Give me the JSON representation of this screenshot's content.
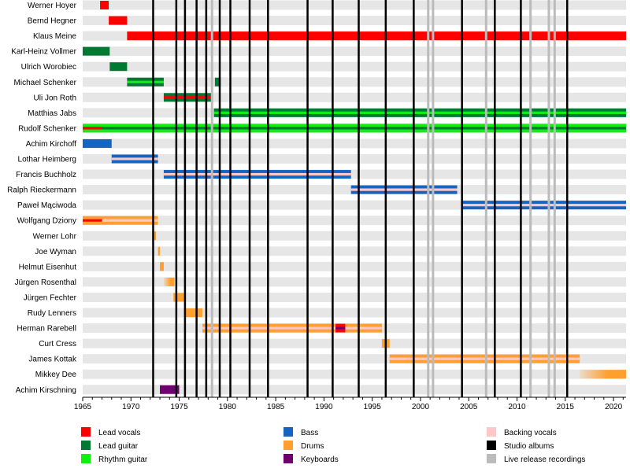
{
  "chart_data": {
    "type": "timeline",
    "x_range": [
      1965,
      2021.3
    ],
    "x_ticks": [
      1965,
      1970,
      1975,
      1980,
      1985,
      1990,
      1995,
      2000,
      2005,
      2010,
      2015,
      2020
    ],
    "roles": {
      "lead_vocals": {
        "label": "Lead vocals",
        "color": "#ff0000"
      },
      "lead_guitar": {
        "label": "Lead guitar",
        "color": "#007a33"
      },
      "rhythm_guitar": {
        "label": "Rhythm guitar",
        "color": "#11ee11"
      },
      "bass": {
        "label": "Bass",
        "color": "#1565c0"
      },
      "drums": {
        "label": "Drums",
        "color": "#ff9f2e"
      },
      "keyboards": {
        "label": "Keyboards",
        "color": "#700070"
      },
      "backing_vocals": {
        "label": "Backing vocals",
        "color": "#ffc8c8"
      },
      "studio_albums": {
        "label": "Studio albums",
        "color": "#000000"
      },
      "live_releases": {
        "label": "Live release recordings",
        "color": "#bbbbbb"
      }
    },
    "legend": [
      [
        "lead_vocals",
        "bass",
        "backing_vocals"
      ],
      [
        "lead_guitar",
        "drums",
        "studio_albums"
      ],
      [
        "rhythm_guitar",
        "keyboards",
        "live_releases"
      ]
    ],
    "members": [
      {
        "name": "Werner Hoyer",
        "periods": [
          {
            "start": 1966.8,
            "end": 1967.7,
            "role": "lead_vocals"
          }
        ]
      },
      {
        "name": "Bernd Hegner",
        "periods": [
          {
            "start": 1967.7,
            "end": 1969.6,
            "role": "lead_vocals"
          }
        ]
      },
      {
        "name": "Klaus Meine",
        "periods": [
          {
            "start": 1969.6,
            "end": 2021.3,
            "role": "lead_vocals"
          }
        ]
      },
      {
        "name": "Karl-Heinz Vollmer",
        "periods": [
          {
            "start": 1965.0,
            "end": 1967.8,
            "role": "lead_guitar"
          }
        ]
      },
      {
        "name": "Ulrich Worobiec",
        "periods": [
          {
            "start": 1967.8,
            "end": 1969.6,
            "role": "lead_guitar"
          }
        ]
      },
      {
        "name": "Michael Schenker",
        "periods": [
          {
            "start": 1969.6,
            "end": 1973.4,
            "role": "lead_guitar",
            "secondary": "rhythm_guitar"
          },
          {
            "start": 1978.7,
            "end": 1979.3,
            "role": "lead_guitar"
          }
        ]
      },
      {
        "name": "Uli Jon Roth",
        "periods": [
          {
            "start": 1973.4,
            "end": 1978.3,
            "role": "lead_guitar",
            "overlay": "lead_vocals"
          }
        ]
      },
      {
        "name": "Matthias Jabs",
        "periods": [
          {
            "start": 1978.6,
            "end": 2021.3,
            "role": "lead_guitar",
            "secondary": "rhythm_guitar"
          }
        ]
      },
      {
        "name": "Rudolf Schenker",
        "periods": [
          {
            "start": 1965.0,
            "end": 2021.3,
            "role": "rhythm_guitar",
            "secondary": "lead_guitar",
            "overlay": "lead_vocals",
            "overlay_end": 1967.0
          }
        ]
      },
      {
        "name": "Achim Kirchoff",
        "periods": [
          {
            "start": 1965.0,
            "end": 1968.0,
            "role": "bass"
          }
        ]
      },
      {
        "name": "Lothar Heimberg",
        "periods": [
          {
            "start": 1968.0,
            "end": 1972.8,
            "role": "bass",
            "secondary": "backing_vocals"
          }
        ]
      },
      {
        "name": "Francis Buchholz",
        "periods": [
          {
            "start": 1973.4,
            "end": 1992.8,
            "role": "bass",
            "secondary": "backing_vocals"
          }
        ]
      },
      {
        "name": "Ralph Rieckermann",
        "periods": [
          {
            "start": 1992.8,
            "end": 2003.8,
            "role": "bass",
            "secondary": "backing_vocals"
          }
        ]
      },
      {
        "name": "Paweł Mąciwoda",
        "periods": [
          {
            "start": 2004.3,
            "end": 2021.3,
            "role": "bass",
            "secondary": "backing_vocals"
          }
        ]
      },
      {
        "name": "Wolfgang Dziony",
        "periods": [
          {
            "start": 1965.0,
            "end": 1972.8,
            "role": "drums",
            "secondary": "backing_vocals",
            "overlay": "lead_vocals",
            "overlay_end": 1967.0
          }
        ]
      },
      {
        "name": "Werner Lohr",
        "periods": [
          {
            "start": 1972.3,
            "end": 1972.6,
            "role": "drums"
          }
        ]
      },
      {
        "name": "Joe Wyman",
        "periods": [
          {
            "start": 1972.8,
            "end": 1973.0,
            "role": "drums"
          }
        ]
      },
      {
        "name": "Helmut Eisenhut",
        "periods": [
          {
            "start": 1973.0,
            "end": 1973.4,
            "role": "drums"
          }
        ]
      },
      {
        "name": "Jürgen Rosenthal",
        "periods": [
          {
            "start": 1973.4,
            "end": 1974.5,
            "role": "drums",
            "fade_in": true
          }
        ]
      },
      {
        "name": "Jürgen Fechter",
        "periods": [
          {
            "start": 1974.4,
            "end": 1975.5,
            "role": "drums"
          }
        ]
      },
      {
        "name": "Rudy Lenners",
        "periods": [
          {
            "start": 1975.5,
            "end": 1977.4,
            "role": "drums"
          }
        ]
      },
      {
        "name": "Herman Rarebell",
        "periods": [
          {
            "start": 1977.4,
            "end": 1996.0,
            "role": "drums",
            "secondary": "backing_vocals",
            "marker_start": 1991.2,
            "marker_end": 1992.2
          }
        ]
      },
      {
        "name": "Curt Cress",
        "periods": [
          {
            "start": 1996.0,
            "end": 1996.8,
            "role": "drums"
          }
        ]
      },
      {
        "name": "James Kottak",
        "periods": [
          {
            "start": 1996.8,
            "end": 2016.5,
            "role": "drums",
            "secondary": "backing_vocals"
          }
        ]
      },
      {
        "name": "Mikkey Dee",
        "periods": [
          {
            "start": 2016.5,
            "end": 2021.3,
            "role": "drums",
            "fade_in": true
          }
        ]
      },
      {
        "name": "Achim Kirschning",
        "periods": [
          {
            "start": 1973.0,
            "end": 1975.0,
            "role": "keyboards"
          }
        ]
      }
    ],
    "studio_albums": [
      1972.3,
      1974.7,
      1975.6,
      1976.8,
      1977.8,
      1979.2,
      1980.3,
      1982.3,
      1984.2,
      1988.3,
      1990.9,
      1993.6,
      1996.4,
      1999.3,
      2004.3,
      2007.7,
      2010.4,
      2015.2
    ],
    "live_releases": [
      1978.4,
      2000.8,
      2001.3,
      2006.8,
      2011.4,
      2013.3,
      2013.9
    ]
  }
}
